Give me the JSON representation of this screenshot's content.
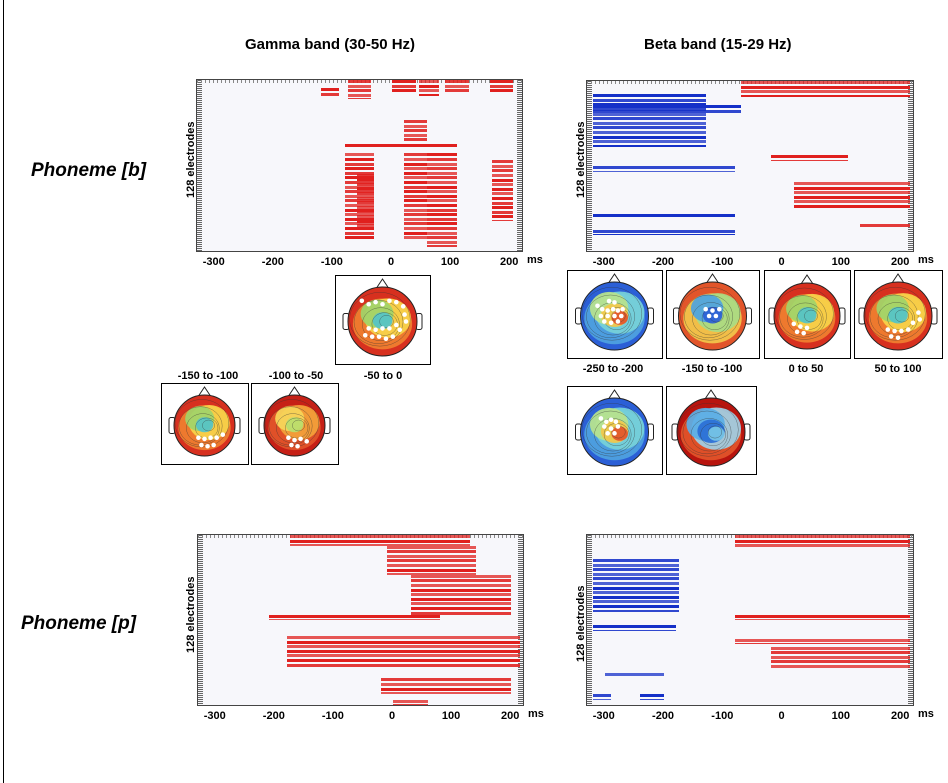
{
  "bands": {
    "gamma": "Gamma band (30-50 Hz)",
    "beta": "Beta band (15-29 Hz)"
  },
  "phonemes": {
    "b": "Phoneme [b]",
    "p": "Phoneme [p]"
  },
  "axis": {
    "ylabel": "128 electrodes",
    "unit": "ms",
    "ticks": [
      "-300",
      "-200",
      "-100",
      "0",
      "100",
      "200"
    ]
  },
  "topo_labels": {
    "gamma": [
      "-150 to -100",
      "-100 to -50",
      "-50 to 0"
    ],
    "beta": [
      "-250 to -200",
      "-150 to -100",
      "0 to 50",
      "50 to 100"
    ]
  },
  "colors": {
    "positive": "#e0201e",
    "negative": "#1530c8",
    "background": "#f7f7fb"
  },
  "chart_data": [
    {
      "type": "raster",
      "name": "gamma-b",
      "xlim": [
        -330,
        220
      ],
      "ylim": [
        0,
        128
      ],
      "segments": [
        {
          "x0": -120,
          "x1": -90,
          "y0": 6,
          "y1": 12,
          "sign": 1
        },
        {
          "x0": -75,
          "x1": -35,
          "y0": 0,
          "y1": 14,
          "sign": 1
        },
        {
          "x0": 0,
          "x1": 40,
          "y0": 0,
          "y1": 10,
          "sign": 1
        },
        {
          "x0": 45,
          "x1": 80,
          "y0": 0,
          "y1": 12,
          "sign": 1
        },
        {
          "x0": 90,
          "x1": 130,
          "y0": 0,
          "y1": 10,
          "sign": 1
        },
        {
          "x0": 165,
          "x1": 205,
          "y0": 0,
          "y1": 10,
          "sign": 1
        },
        {
          "x0": 20,
          "x1": 60,
          "y0": 30,
          "y1": 46,
          "sign": 1
        },
        {
          "x0": -80,
          "x1": 110,
          "y0": 48,
          "y1": 51,
          "sign": 1
        },
        {
          "x0": -80,
          "x1": -30,
          "y0": 55,
          "y1": 120,
          "sign": 1
        },
        {
          "x0": 20,
          "x1": 60,
          "y0": 55,
          "y1": 120,
          "sign": 1
        },
        {
          "x0": 60,
          "x1": 110,
          "y0": 55,
          "y1": 125,
          "sign": 1
        },
        {
          "x0": 170,
          "x1": 205,
          "y0": 60,
          "y1": 105,
          "sign": 1
        },
        {
          "x0": -60,
          "x1": -30,
          "y0": 70,
          "y1": 110,
          "sign": 1
        }
      ]
    },
    {
      "type": "raster",
      "name": "beta-b",
      "xlim": [
        -330,
        220
      ],
      "ylim": [
        0,
        128
      ],
      "segments": [
        {
          "x0": -70,
          "x1": 215,
          "y0": 0,
          "y1": 12,
          "sign": 1
        },
        {
          "x0": -320,
          "x1": -130,
          "y0": 10,
          "y1": 50,
          "sign": -1
        },
        {
          "x0": -320,
          "x1": -70,
          "y0": 18,
          "y1": 24,
          "sign": -1
        },
        {
          "x0": -320,
          "x1": -80,
          "y0": 64,
          "y1": 68,
          "sign": -1
        },
        {
          "x0": -320,
          "x1": -80,
          "y0": 100,
          "y1": 103,
          "sign": -1
        },
        {
          "x0": -320,
          "x1": -80,
          "y0": 112,
          "y1": 116,
          "sign": -1
        },
        {
          "x0": -20,
          "x1": 110,
          "y0": 56,
          "y1": 60,
          "sign": 1
        },
        {
          "x0": 20,
          "x1": 215,
          "y0": 76,
          "y1": 96,
          "sign": 1
        },
        {
          "x0": 130,
          "x1": 215,
          "y0": 108,
          "y1": 111,
          "sign": 1
        }
      ]
    },
    {
      "type": "raster",
      "name": "gamma-p",
      "xlim": [
        -330,
        220
      ],
      "ylim": [
        0,
        128
      ],
      "segments": [
        {
          "x0": -175,
          "x1": 130,
          "y0": 0,
          "y1": 8,
          "sign": 1
        },
        {
          "x0": -10,
          "x1": 140,
          "y0": 8,
          "y1": 30,
          "sign": 1
        },
        {
          "x0": 30,
          "x1": 200,
          "y0": 30,
          "y1": 60,
          "sign": 1
        },
        {
          "x0": -210,
          "x1": 80,
          "y0": 60,
          "y1": 64,
          "sign": 1
        },
        {
          "x0": -180,
          "x1": 215,
          "y0": 76,
          "y1": 100,
          "sign": 1
        },
        {
          "x0": -20,
          "x1": 200,
          "y0": 108,
          "y1": 120,
          "sign": 1
        },
        {
          "x0": 0,
          "x1": 60,
          "y0": 124,
          "y1": 128,
          "sign": 1
        }
      ]
    },
    {
      "type": "raster",
      "name": "beta-p",
      "xlim": [
        -330,
        220
      ],
      "ylim": [
        0,
        128
      ],
      "segments": [
        {
          "x0": -80,
          "x1": 215,
          "y0": 0,
          "y1": 10,
          "sign": 1
        },
        {
          "x0": -320,
          "x1": -175,
          "y0": 18,
          "y1": 58,
          "sign": -1
        },
        {
          "x0": -320,
          "x1": -180,
          "y0": 68,
          "y1": 72,
          "sign": -1
        },
        {
          "x0": -80,
          "x1": 215,
          "y0": 60,
          "y1": 64,
          "sign": 1
        },
        {
          "x0": -80,
          "x1": 215,
          "y0": 78,
          "y1": 82,
          "sign": 1
        },
        {
          "x0": -20,
          "x1": 215,
          "y0": 84,
          "y1": 100,
          "sign": 1
        },
        {
          "x0": -300,
          "x1": -200,
          "y0": 104,
          "y1": 106,
          "sign": -1
        },
        {
          "x0": -320,
          "x1": -290,
          "y0": 120,
          "y1": 124,
          "sign": -1
        },
        {
          "x0": -240,
          "x1": -200,
          "y0": 120,
          "y1": 124,
          "sign": -1
        }
      ]
    }
  ]
}
